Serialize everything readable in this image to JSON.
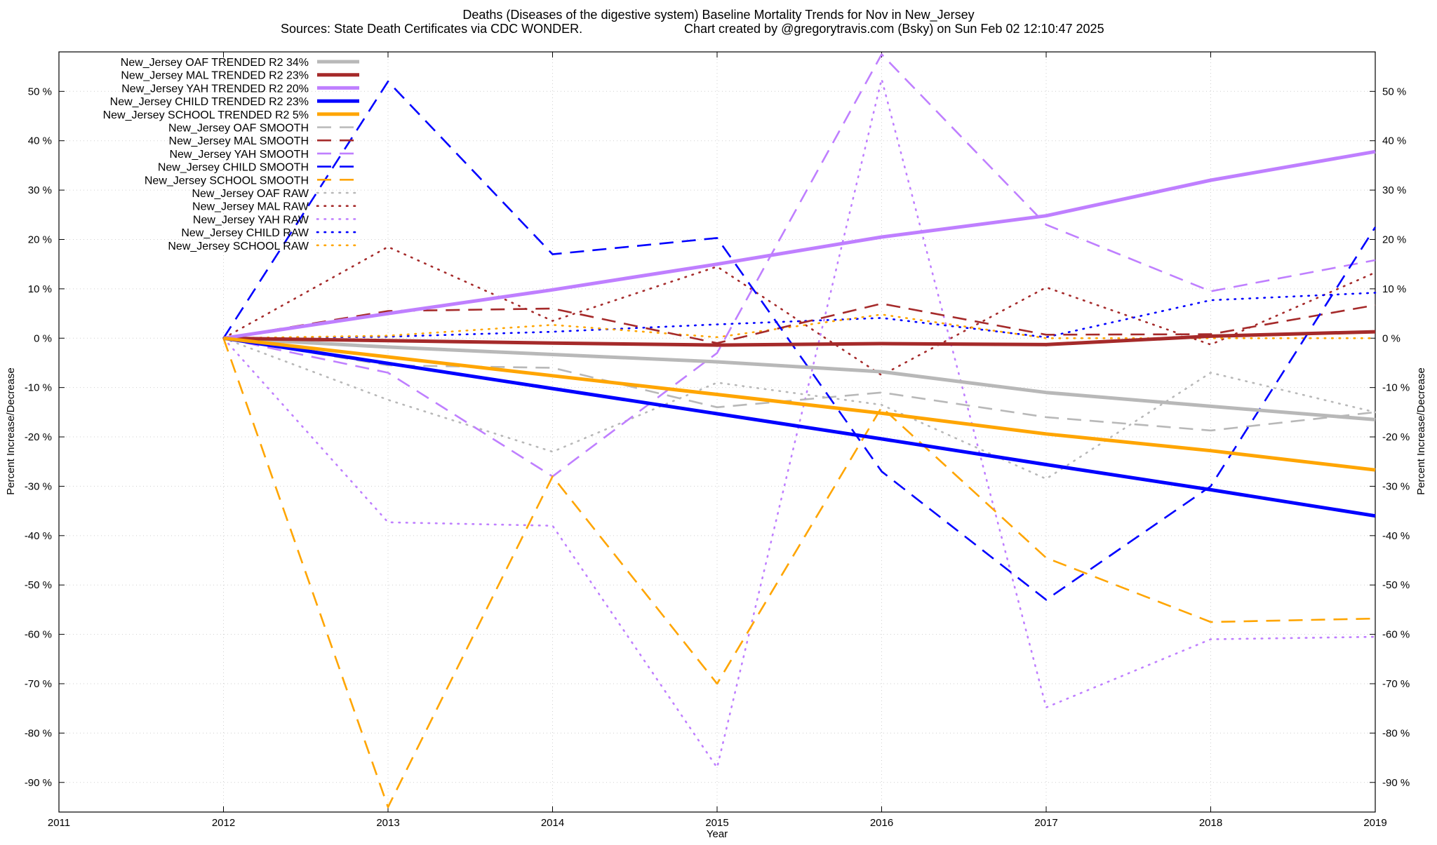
{
  "chart_data": {
    "type": "line",
    "title": "Deaths (Diseases of the digestive system)  Baseline Mortality Trends for Nov in New_Jersey",
    "subtitle_left": "Sources: State Death Certificates via CDC WONDER.",
    "subtitle_right": "Chart created by @gregorytravis.com (Bsky) on Sun Feb 02 12:10:47 2025",
    "xlabel": "Year",
    "ylabel": "Percent Increase/Decrease",
    "y2label": "Percent Increase/Decrease",
    "xlim": [
      2011,
      2019
    ],
    "ylim": [
      -96,
      58
    ],
    "x_ticks": [
      "2011",
      "2012",
      "2013",
      "2014",
      "2015",
      "2016",
      "2017",
      "2018",
      "2019"
    ],
    "y_ticks": [
      {
        "value": 50,
        "label": "50 %"
      },
      {
        "value": 40,
        "label": "40 %"
      },
      {
        "value": 30,
        "label": "30 %"
      },
      {
        "value": 20,
        "label": "20 %"
      },
      {
        "value": 10,
        "label": "10 %"
      },
      {
        "value": 0,
        "label": "0 %"
      },
      {
        "value": -10,
        "label": "-10 %"
      },
      {
        "value": -20,
        "label": "-20 %"
      },
      {
        "value": -30,
        "label": "-30 %"
      },
      {
        "value": -40,
        "label": "-40 %"
      },
      {
        "value": -50,
        "label": "-50 %"
      },
      {
        "value": -60,
        "label": "-60 %"
      },
      {
        "value": -70,
        "label": "-70 %"
      },
      {
        "value": -80,
        "label": "-80 %"
      },
      {
        "value": -90,
        "label": "-90 %"
      }
    ],
    "grid": true,
    "legend_position": "top-left",
    "series": [
      {
        "name": "New_Jersey OAF TRENDED R2  34%",
        "style": "trend",
        "color": "#b8b8b8",
        "x": [
          2012,
          2013,
          2014,
          2015,
          2016,
          2017,
          2018,
          2019
        ],
        "y": [
          0,
          -1.8,
          -3.3,
          -4.8,
          -6.8,
          -11,
          -13.8,
          -16.5
        ]
      },
      {
        "name": "New_Jersey MAL TRENDED R2  23%",
        "style": "trend",
        "color": "#a52a2a",
        "x": [
          2012,
          2013,
          2014,
          2015,
          2016,
          2017,
          2018,
          2019
        ],
        "y": [
          0,
          -0.5,
          -1,
          -1.4,
          -1.1,
          -1.3,
          0.4,
          1.3
        ]
      },
      {
        "name": "New_Jersey YAH TRENDED R2  20%",
        "style": "trend",
        "color": "#bf7fff",
        "x": [
          2012,
          2013,
          2014,
          2015,
          2016,
          2017,
          2018,
          2019
        ],
        "y": [
          0,
          5,
          9.8,
          15,
          20.5,
          24.8,
          32,
          37.8
        ]
      },
      {
        "name": "New_Jersey CHILD TRENDED R2  23%",
        "style": "trend",
        "color": "#0000ff",
        "x": [
          2012,
          2013,
          2014,
          2015,
          2016,
          2017,
          2018,
          2019
        ],
        "y": [
          0,
          -5.1,
          -10.2,
          -15.3,
          -20.4,
          -25.6,
          -30.7,
          -36
        ]
      },
      {
        "name": "New_Jersey SCHOOL TRENDED R2   5%",
        "style": "trend",
        "color": "#ffa500",
        "x": [
          2012,
          2013,
          2014,
          2015,
          2016,
          2017,
          2018,
          2019
        ],
        "y": [
          0,
          -3.8,
          -7.6,
          -11.4,
          -15.2,
          -19.4,
          -22.8,
          -26.7
        ]
      },
      {
        "name": "New_Jersey OAF SMOOTH",
        "style": "smooth",
        "color": "#b8b8b8",
        "x": [
          2012,
          2013,
          2014,
          2015,
          2016,
          2017,
          2018,
          2019
        ],
        "y": [
          0,
          -5.5,
          -6,
          -14,
          -11,
          -16,
          -18.7,
          -15
        ]
      },
      {
        "name": "New_Jersey MAL SMOOTH",
        "style": "smooth",
        "color": "#a52a2a",
        "x": [
          2012,
          2013,
          2014,
          2015,
          2016,
          2017,
          2018,
          2019
        ],
        "y": [
          0,
          5.5,
          6,
          -1,
          7,
          0.7,
          0.8,
          6.7
        ]
      },
      {
        "name": "New_Jersey YAH SMOOTH",
        "style": "smooth",
        "color": "#bf7fff",
        "x": [
          2012,
          2013,
          2014,
          2015,
          2016,
          2017,
          2018,
          2019
        ],
        "y": [
          0,
          -7,
          -28,
          -3,
          57.5,
          23,
          9.5,
          15.8
        ]
      },
      {
        "name": "New_Jersey CHILD SMOOTH",
        "style": "smooth",
        "color": "#0000ff",
        "x": [
          2012,
          2013,
          2014,
          2015,
          2016,
          2017,
          2018,
          2019
        ],
        "y": [
          0,
          52,
          17,
          20.3,
          -27,
          -53,
          -30,
          22.5
        ]
      },
      {
        "name": "New_Jersey SCHOOL SMOOTH",
        "style": "smooth",
        "color": "#ffa500",
        "x": [
          2012,
          2013,
          2014,
          2015,
          2016,
          2017,
          2018,
          2019
        ],
        "y": [
          0,
          -95,
          -28,
          -70,
          -14,
          -44.5,
          -57.5,
          -56.8
        ]
      },
      {
        "name": "New_Jersey OAF RAW",
        "style": "raw",
        "color": "#b8b8b8",
        "x": [
          2012,
          2013,
          2014,
          2015,
          2016,
          2017,
          2018,
          2019
        ],
        "y": [
          0,
          -12.5,
          -23,
          -9,
          -13.5,
          -28.5,
          -7,
          -15
        ]
      },
      {
        "name": "New_Jersey MAL RAW",
        "style": "raw",
        "color": "#a52a2a",
        "x": [
          2012,
          2013,
          2014,
          2015,
          2016,
          2017,
          2018,
          2019
        ],
        "y": [
          0,
          18.5,
          3.5,
          14.5,
          -7.5,
          10.3,
          -1.3,
          13.3
        ]
      },
      {
        "name": "New_Jersey YAH RAW",
        "style": "raw",
        "color": "#bf7fff",
        "x": [
          2012,
          2013,
          2014,
          2015,
          2016,
          2017,
          2018,
          2019
        ],
        "y": [
          0,
          -37.3,
          -38,
          -87,
          52.5,
          -74.8,
          -61,
          -60.5
        ]
      },
      {
        "name": "New_Jersey CHILD RAW",
        "style": "raw",
        "color": "#0000ff",
        "x": [
          2012,
          2013,
          2014,
          2015,
          2016,
          2017,
          2018,
          2019
        ],
        "y": [
          0,
          0.3,
          1.3,
          2.8,
          4.1,
          0.2,
          7.7,
          9.2
        ]
      },
      {
        "name": "New_Jersey SCHOOL RAW",
        "style": "raw",
        "color": "#ffa500",
        "x": [
          2012,
          2013,
          2014,
          2015,
          2016,
          2017,
          2018,
          2019
        ],
        "y": [
          0,
          0.5,
          2.7,
          0.2,
          4.8,
          0,
          0,
          0
        ]
      }
    ]
  }
}
